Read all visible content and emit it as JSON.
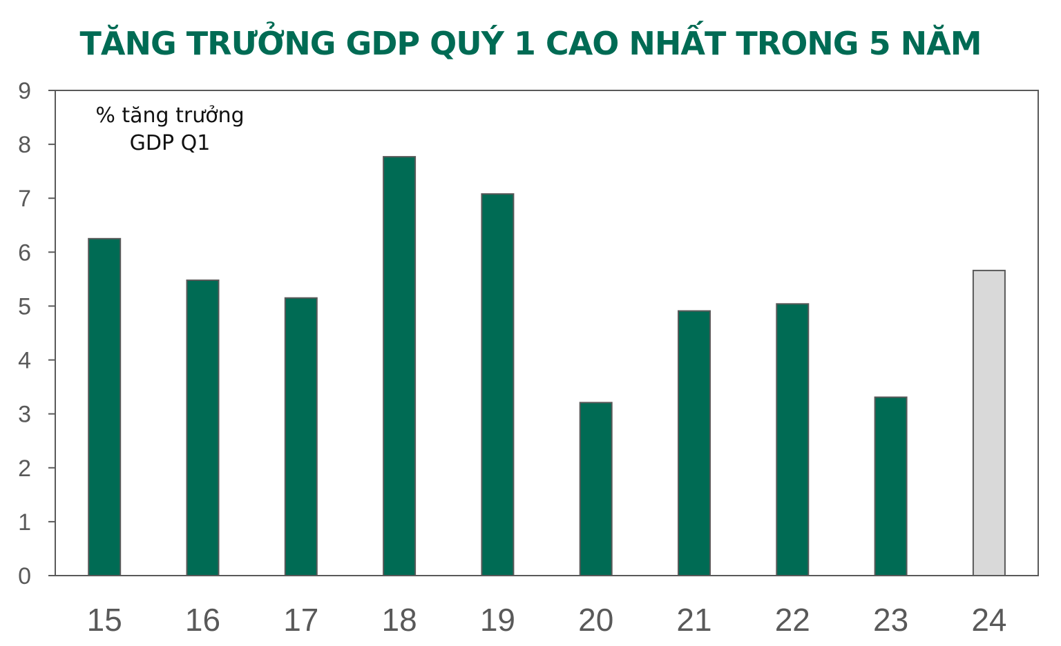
{
  "chart_data": {
    "type": "bar",
    "title": "TĂNG TRƯỞNG GDP QUÝ 1 CAO NHẤT TRONG 5 NĂM",
    "annotation": [
      "% tăng trưởng",
      "GDP Q1"
    ],
    "categories": [
      "15",
      "16",
      "17",
      "18",
      "19",
      "20",
      "21",
      "22",
      "23",
      "24"
    ],
    "values": [
      6.25,
      5.48,
      5.15,
      7.77,
      7.08,
      3.21,
      4.91,
      5.04,
      3.31,
      5.66
    ],
    "bar_colors": [
      "#006b54",
      "#006b54",
      "#006b54",
      "#006b54",
      "#006b54",
      "#006b54",
      "#006b54",
      "#006b54",
      "#006b54",
      "#d9d9d9"
    ],
    "ylim": [
      0,
      9
    ],
    "yticks": [
      0,
      1,
      2,
      3,
      4,
      5,
      6,
      7,
      8,
      9
    ],
    "xlabel": "",
    "ylabel": "",
    "grid": false,
    "colors": {
      "title": "#006b54",
      "bar": "#006b54",
      "bar_highlight": "#d9d9d9",
      "bar_outline": "#595959",
      "axis": "#595959",
      "tick_text": "#595959"
    }
  }
}
